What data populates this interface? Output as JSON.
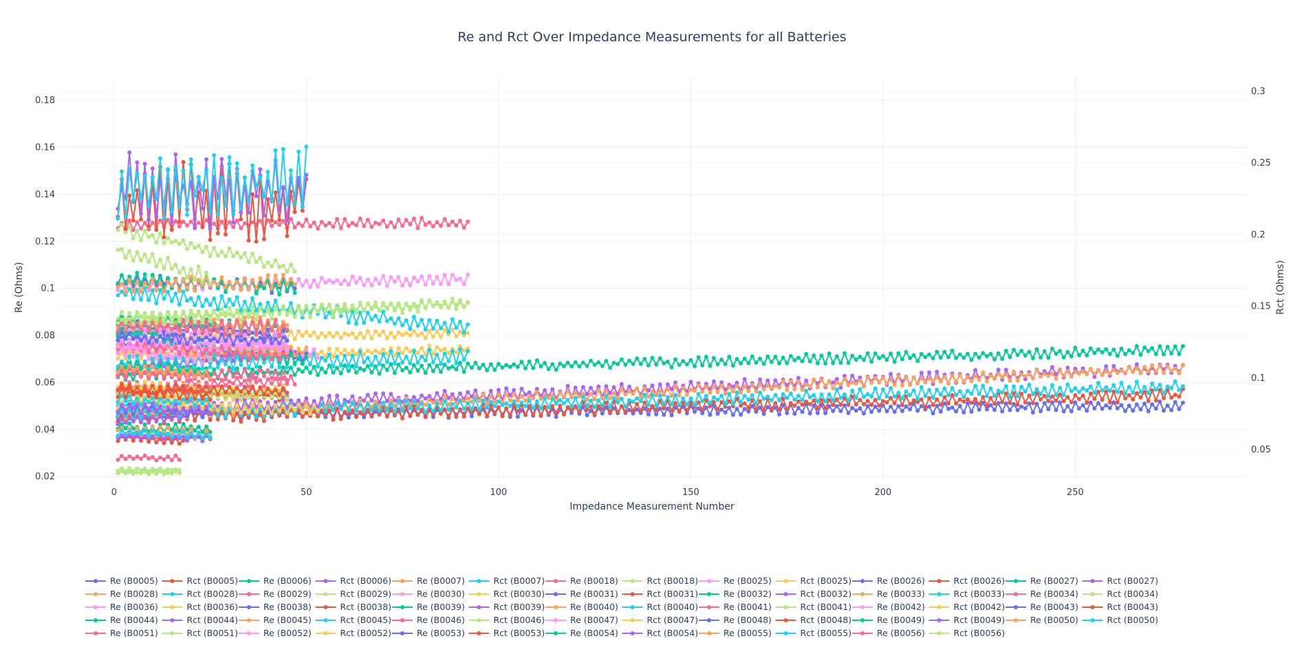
{
  "chart_data": {
    "type": "line",
    "title": "Re and Rct Over Impedance Measurements for all Batteries",
    "xlabel": "Impedance Measurement Number",
    "ylabel": "Re (Ohms)",
    "y2label": "Rct (Ohms)",
    "xlim": [
      -15,
      295
    ],
    "ylim": [
      0.018,
      0.19
    ],
    "y2lim": [
      0.028,
      0.31
    ],
    "xticks": [
      0,
      50,
      100,
      150,
      200,
      250
    ],
    "yticks": [
      0.02,
      0.04,
      0.06,
      0.08,
      0.1,
      0.12,
      0.14,
      0.16,
      0.18
    ],
    "y2ticks": [
      0.05,
      0.1,
      0.15,
      0.2,
      0.25,
      0.3
    ],
    "grid": true,
    "legend_position": "bottom",
    "palette": [
      "#636efa",
      "#EF553B",
      "#00cc96",
      "#ab63fa",
      "#FFA15A",
      "#19d3f3",
      "#FF6692",
      "#B6E880",
      "#FF97FF",
      "#FECB52"
    ],
    "series": [
      {
        "name": "Re (B0005)",
        "axis": "y",
        "n": 278,
        "start": 0.046,
        "end": 0.05,
        "noise": 0.002
      },
      {
        "name": "Rct (B0005)",
        "axis": "y2",
        "n": 278,
        "start": 0.072,
        "end": 0.088,
        "noise": 0.004
      },
      {
        "name": "Re (B0006)",
        "axis": "y",
        "n": 278,
        "start": 0.063,
        "end": 0.074,
        "noise": 0.002
      },
      {
        "name": "Rct (B0006)",
        "axis": "y2",
        "n": 278,
        "start": 0.078,
        "end": 0.107,
        "noise": 0.004
      },
      {
        "name": "Re (B0007)",
        "axis": "y",
        "n": 278,
        "start": 0.046,
        "end": 0.066,
        "noise": 0.002
      },
      {
        "name": "Rct (B0007)",
        "axis": "y2",
        "n": 278,
        "start": 0.075,
        "end": 0.094,
        "noise": 0.004
      },
      {
        "name": "Re (B0018)",
        "axis": "y",
        "n": 92,
        "start": 0.127,
        "end": 0.128,
        "noise": 0.002
      },
      {
        "name": "Rct (B0018)",
        "axis": "y2",
        "n": 92,
        "start": 0.143,
        "end": 0.152,
        "noise": 0.003
      },
      {
        "name": "Re (B0025)",
        "axis": "y",
        "n": 92,
        "start": 0.101,
        "end": 0.104,
        "noise": 0.002
      },
      {
        "name": "Rct (B0025)",
        "axis": "y2",
        "n": 92,
        "start": 0.13,
        "end": 0.131,
        "noise": 0.003
      },
      {
        "name": "Re (B0026)",
        "axis": "y",
        "n": 18,
        "start": 0.083,
        "end": 0.08,
        "noise": 0.002
      },
      {
        "name": "Rct (B0026)",
        "axis": "y2",
        "n": 18,
        "start": 0.058,
        "end": 0.056,
        "noise": 0.002
      },
      {
        "name": "Re (B0027)",
        "axis": "y",
        "n": 18,
        "start": 0.081,
        "end": 0.084,
        "noise": 0.002
      },
      {
        "name": "Rct (B0027)",
        "axis": "y2",
        "n": 18,
        "start": 0.07,
        "end": 0.072,
        "noise": 0.002
      },
      {
        "name": "Re (B0028)",
        "axis": "y",
        "n": 18,
        "start": 0.077,
        "end": 0.074,
        "noise": 0.002
      },
      {
        "name": "Rct (B0028)",
        "axis": "y2",
        "n": 18,
        "start": 0.082,
        "end": 0.08,
        "noise": 0.002
      },
      {
        "name": "Re (B0029)",
        "axis": "y",
        "n": 45,
        "start": 0.064,
        "end": 0.063,
        "noise": 0.002
      },
      {
        "name": "Rct (B0029)",
        "axis": "y2",
        "n": 17,
        "start": 0.034,
        "end": 0.034,
        "noise": 0.001
      },
      {
        "name": "Re (B0030)",
        "axis": "y",
        "n": 45,
        "start": 0.08,
        "end": 0.076,
        "noise": 0.002
      },
      {
        "name": "Rct (B0030)",
        "axis": "y2",
        "n": 45,
        "start": 0.086,
        "end": 0.087,
        "noise": 0.003
      },
      {
        "name": "Re (B0031)",
        "axis": "y",
        "n": 45,
        "start": 0.085,
        "end": 0.08,
        "noise": 0.002
      },
      {
        "name": "Rct (B0031)",
        "axis": "y2",
        "n": 45,
        "start": 0.09,
        "end": 0.087,
        "noise": 0.003
      },
      {
        "name": "Re (B0032)",
        "axis": "y",
        "n": 45,
        "start": 0.087,
        "end": 0.083,
        "noise": 0.002
      },
      {
        "name": "Rct (B0032)",
        "axis": "y2",
        "n": 45,
        "start": 0.093,
        "end": 0.09,
        "noise": 0.003
      },
      {
        "name": "Re (B0033)",
        "axis": "y",
        "n": 45,
        "start": 0.084,
        "end": 0.085,
        "noise": 0.003
      },
      {
        "name": "Rct (B0033)",
        "axis": "y2",
        "n": 92,
        "start": 0.16,
        "end": 0.135,
        "noise": 0.005
      },
      {
        "name": "Re (B0034)",
        "axis": "y",
        "n": 45,
        "start": 0.084,
        "end": 0.083,
        "noise": 0.003
      },
      {
        "name": "Rct (B0034)",
        "axis": "y2",
        "n": 92,
        "start": 0.14,
        "end": 0.152,
        "noise": 0.004
      },
      {
        "name": "Re (B0036)",
        "axis": "y",
        "n": 45,
        "start": 0.08,
        "end": 0.078,
        "noise": 0.003
      },
      {
        "name": "Rct (B0036)",
        "axis": "y2",
        "n": 92,
        "start": 0.115,
        "end": 0.12,
        "noise": 0.003
      },
      {
        "name": "Re (B0038)",
        "axis": "y",
        "n": 47,
        "start": 0.103,
        "end": 0.101,
        "noise": 0.003
      },
      {
        "name": "Rct (B0038)",
        "axis": "y2",
        "n": 47,
        "start": 0.107,
        "end": 0.117,
        "noise": 0.003
      },
      {
        "name": "Re (B0039)",
        "axis": "y",
        "n": 47,
        "start": 0.104,
        "end": 0.1,
        "noise": 0.003
      },
      {
        "name": "Rct (B0039)",
        "axis": "y2",
        "n": 47,
        "start": 0.107,
        "end": 0.119,
        "noise": 0.003
      },
      {
        "name": "Re (B0040)",
        "axis": "y",
        "n": 47,
        "start": 0.101,
        "end": 0.103,
        "noise": 0.003
      },
      {
        "name": "Rct (B0040)",
        "axis": "y2",
        "n": 92,
        "start": 0.11,
        "end": 0.115,
        "noise": 0.005
      },
      {
        "name": "Re (B0041)",
        "axis": "y",
        "n": 47,
        "start": 0.058,
        "end": 0.061,
        "noise": 0.002
      },
      {
        "name": "Rct (B0041)",
        "axis": "y2",
        "n": 47,
        "start": 0.204,
        "end": 0.176,
        "noise": 0.004
      },
      {
        "name": "Re (B0042)",
        "axis": "y",
        "n": 53,
        "start": 0.075,
        "end": 0.072,
        "noise": 0.002
      },
      {
        "name": "Rct (B0042)",
        "axis": "y2",
        "n": 53,
        "start": 0.08,
        "end": 0.078,
        "noise": 0.003
      },
      {
        "name": "Re (B0043)",
        "axis": "y",
        "n": 50,
        "start": 0.077,
        "end": 0.071,
        "noise": 0.002
      },
      {
        "name": "Rct (B0043)",
        "axis": "y2",
        "n": 50,
        "start": 0.225,
        "end": 0.22,
        "noise": 0.025
      },
      {
        "name": "Re (B0044)",
        "axis": "y",
        "n": 50,
        "start": 0.081,
        "end": 0.069,
        "noise": 0.002
      },
      {
        "name": "Rct (B0044)",
        "axis": "y2",
        "n": 50,
        "start": 0.23,
        "end": 0.23,
        "noise": 0.025
      },
      {
        "name": "Re (B0045)",
        "axis": "y",
        "n": 50,
        "start": 0.074,
        "end": 0.073,
        "noise": 0.002
      },
      {
        "name": "Rct (B0045)",
        "axis": "y2",
        "n": 50,
        "start": 0.23,
        "end": 0.24,
        "noise": 0.02
      },
      {
        "name": "Re (B0046)",
        "axis": "y",
        "n": 45,
        "start": 0.076,
        "end": 0.071,
        "noise": 0.002
      },
      {
        "name": "Rct (B0046)",
        "axis": "y2",
        "n": 45,
        "start": 0.09,
        "end": 0.088,
        "noise": 0.003
      },
      {
        "name": "Re (B0047)",
        "axis": "y",
        "n": 45,
        "start": 0.077,
        "end": 0.075,
        "noise": 0.002
      },
      {
        "name": "Rct (B0047)",
        "axis": "y2",
        "n": 45,
        "start": 0.095,
        "end": 0.092,
        "noise": 0.003
      },
      {
        "name": "Re (B0048)",
        "axis": "y",
        "n": 45,
        "start": 0.079,
        "end": 0.078,
        "noise": 0.002
      },
      {
        "name": "Rct (B0048)",
        "axis": "y2",
        "n": 45,
        "start": 0.093,
        "end": 0.091,
        "noise": 0.003
      },
      {
        "name": "Re (B0049)",
        "axis": "y",
        "n": 25,
        "start": 0.041,
        "end": 0.04,
        "noise": 0.002
      },
      {
        "name": "Rct (B0049)",
        "axis": "y2",
        "n": 25,
        "start": 0.06,
        "end": 0.058,
        "noise": 0.002
      },
      {
        "name": "Re (B0050)",
        "axis": "y",
        "n": 25,
        "start": 0.04,
        "end": 0.038,
        "noise": 0.002
      },
      {
        "name": "Rct (B0050)",
        "axis": "y2",
        "n": 25,
        "start": 0.062,
        "end": 0.06,
        "noise": 0.002
      },
      {
        "name": "Re (B0051)",
        "axis": "y",
        "n": 25,
        "start": 0.065,
        "end": 0.062,
        "noise": 0.002
      },
      {
        "name": "Rct (B0051)",
        "axis": "y2",
        "n": 25,
        "start": 0.19,
        "end": 0.17,
        "noise": 0.005
      },
      {
        "name": "Re (B0052)",
        "axis": "y",
        "n": 25,
        "start": 0.073,
        "end": 0.07,
        "noise": 0.002
      },
      {
        "name": "Rct (B0052)",
        "axis": "y2",
        "n": 25,
        "start": 0.08,
        "end": 0.079,
        "noise": 0.003
      },
      {
        "name": "Re (B0053)",
        "axis": "y",
        "n": 25,
        "start": 0.049,
        "end": 0.047,
        "noise": 0.002
      },
      {
        "name": "Rct (B0053)",
        "axis": "y2",
        "n": 25,
        "start": 0.09,
        "end": 0.088,
        "noise": 0.003
      },
      {
        "name": "Re (B0054)",
        "axis": "y",
        "n": 25,
        "start": 0.067,
        "end": 0.065,
        "noise": 0.002
      },
      {
        "name": "Rct (B0054)",
        "axis": "y2",
        "n": 25,
        "start": 0.08,
        "end": 0.078,
        "noise": 0.003
      },
      {
        "name": "Re (B0055)",
        "axis": "y",
        "n": 25,
        "start": 0.066,
        "end": 0.064,
        "noise": 0.002
      },
      {
        "name": "Rct (B0055)",
        "axis": "y2",
        "n": 25,
        "start": 0.085,
        "end": 0.083,
        "noise": 0.003
      },
      {
        "name": "Re (B0056)",
        "axis": "y",
        "n": 17,
        "start": 0.028,
        "end": 0.028,
        "noise": 0.001
      },
      {
        "name": "Rct (B0056)",
        "axis": "y2",
        "n": 17,
        "start": 0.036,
        "end": 0.036,
        "noise": 0.001
      }
    ]
  }
}
